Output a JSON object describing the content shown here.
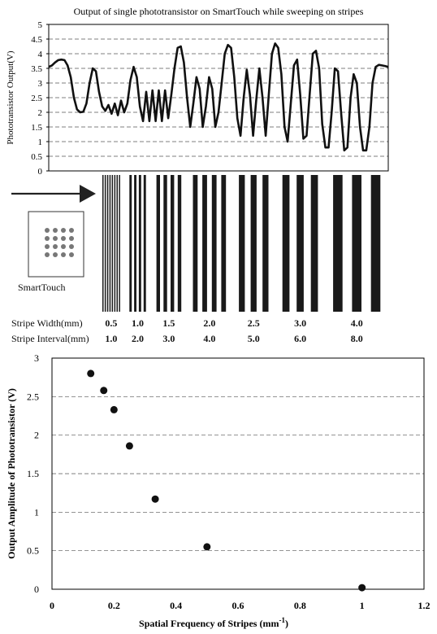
{
  "chart_data": [
    {
      "type": "line",
      "title": "Output of single phototransistor on SmartTouch while sweeping on stripes",
      "xlabel": "",
      "ylabel": "Phototransistor Output(V)",
      "ylim": [
        0,
        5
      ],
      "yticks": [
        "0",
        "0.5",
        "1",
        "1.5",
        "2",
        "2.5",
        "3",
        "3.5",
        "4",
        "4.5",
        "5"
      ],
      "grid": true,
      "series": [
        {
          "values": [
            3.55,
            3.6,
            3.7,
            3.78,
            3.8,
            3.78,
            3.6,
            3.2,
            2.5,
            2.1,
            2.0,
            2.02,
            2.3,
            3.0,
            3.5,
            3.4,
            2.7,
            2.2,
            2.05,
            2.25,
            1.95,
            2.3,
            1.9,
            2.4,
            2.0,
            2.3,
            3.1,
            3.55,
            3.2,
            2.2,
            1.7,
            2.7,
            1.7,
            2.75,
            1.7,
            2.75,
            1.7,
            2.75,
            1.8,
            2.6,
            3.5,
            4.2,
            4.25,
            3.7,
            2.5,
            1.5,
            2.3,
            3.2,
            2.8,
            1.5,
            2.2,
            3.2,
            2.8,
            1.5,
            2.0,
            3.0,
            4.0,
            4.3,
            4.2,
            3.2,
            1.8,
            1.2,
            2.5,
            3.45,
            2.6,
            1.2,
            2.4,
            3.5,
            2.5,
            1.2,
            2.6,
            4.0,
            4.35,
            4.2,
            3.3,
            1.5,
            1.0,
            2.3,
            3.6,
            3.8,
            2.6,
            1.1,
            1.2,
            2.6,
            4.0,
            4.1,
            3.5,
            1.6,
            0.8,
            0.8,
            2.0,
            3.5,
            3.4,
            2.0,
            0.7,
            0.8,
            2.5,
            3.3,
            3.0,
            1.5,
            0.7,
            0.7,
            1.5,
            3.0,
            3.55,
            3.62,
            3.6,
            3.58,
            3.55
          ]
        }
      ]
    },
    {
      "type": "scatter",
      "xlabel": "Spatial Frequency of Stripes (mm",
      "xlabel_sup": "-1",
      "xlabel_end": ")",
      "ylabel": "Output Amplitude of Phototransistor (V)",
      "xlim": [
        0,
        1.2
      ],
      "ylim": [
        0,
        3
      ],
      "xticks": [
        "0",
        "0.2",
        "0.4",
        "0.6",
        "0.8",
        "1",
        "1.2"
      ],
      "yticks": [
        "0",
        "0.5",
        "1",
        "1.5",
        "2",
        "2.5",
        "3"
      ],
      "grid": true,
      "points": [
        {
          "x": 0.125,
          "y": 2.8
        },
        {
          "x": 0.167,
          "y": 2.58
        },
        {
          "x": 0.2,
          "y": 2.33
        },
        {
          "x": 0.25,
          "y": 1.86
        },
        {
          "x": 0.333,
          "y": 1.17
        },
        {
          "x": 0.5,
          "y": 0.55
        },
        {
          "x": 1.0,
          "y": 0.02
        }
      ]
    }
  ],
  "stripes": {
    "device_label": "SmartTouch",
    "sensor_grid": [
      4,
      4
    ],
    "width_row_label": "Stripe Width(mm)",
    "interval_row_label": "Stripe Interval(mm)",
    "groups": [
      {
        "width": "0.5",
        "interval": "1.0",
        "count": 8
      },
      {
        "width": "1.0",
        "interval": "2.0",
        "count": 4
      },
      {
        "width": "1.5",
        "interval": "3.0",
        "count": 4
      },
      {
        "width": "2.0",
        "interval": "4.0",
        "count": 4
      },
      {
        "width": "2.5",
        "interval": "5.0",
        "count": 3
      },
      {
        "width": "3.0",
        "interval": "6.0",
        "count": 3
      },
      {
        "width": "4.0",
        "interval": "8.0",
        "count": 3
      }
    ]
  }
}
